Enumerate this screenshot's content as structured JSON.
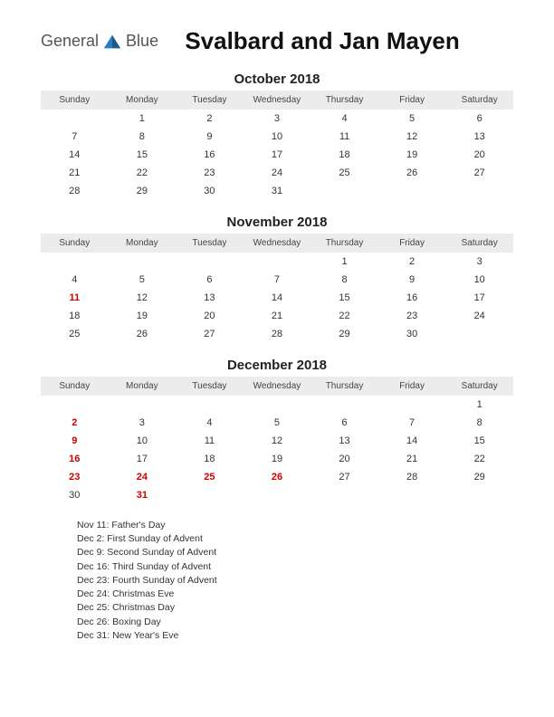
{
  "logo": {
    "first": "General",
    "second": "Blue"
  },
  "page_title": "Svalbard and Jan Mayen",
  "day_headers": [
    "Sunday",
    "Monday",
    "Tuesday",
    "Wednesday",
    "Thursday",
    "Friday",
    "Saturday"
  ],
  "colors": {
    "header_bg": "#ececec",
    "text": "#333333",
    "highlight": "#cc0000",
    "background": "#ffffff"
  },
  "months": [
    {
      "title": "October 2018",
      "weeks": [
        [
          {
            "d": ""
          },
          {
            "d": "1"
          },
          {
            "d": "2"
          },
          {
            "d": "3"
          },
          {
            "d": "4"
          },
          {
            "d": "5"
          },
          {
            "d": "6"
          }
        ],
        [
          {
            "d": "7"
          },
          {
            "d": "8"
          },
          {
            "d": "9"
          },
          {
            "d": "10"
          },
          {
            "d": "11"
          },
          {
            "d": "12"
          },
          {
            "d": "13"
          }
        ],
        [
          {
            "d": "14"
          },
          {
            "d": "15"
          },
          {
            "d": "16"
          },
          {
            "d": "17"
          },
          {
            "d": "18"
          },
          {
            "d": "19"
          },
          {
            "d": "20"
          }
        ],
        [
          {
            "d": "21"
          },
          {
            "d": "22"
          },
          {
            "d": "23"
          },
          {
            "d": "24"
          },
          {
            "d": "25"
          },
          {
            "d": "26"
          },
          {
            "d": "27"
          }
        ],
        [
          {
            "d": "28"
          },
          {
            "d": "29"
          },
          {
            "d": "30"
          },
          {
            "d": "31"
          },
          {
            "d": ""
          },
          {
            "d": ""
          },
          {
            "d": ""
          }
        ]
      ]
    },
    {
      "title": "November 2018",
      "weeks": [
        [
          {
            "d": ""
          },
          {
            "d": ""
          },
          {
            "d": ""
          },
          {
            "d": ""
          },
          {
            "d": "1"
          },
          {
            "d": "2"
          },
          {
            "d": "3"
          }
        ],
        [
          {
            "d": "4"
          },
          {
            "d": "5"
          },
          {
            "d": "6"
          },
          {
            "d": "7"
          },
          {
            "d": "8"
          },
          {
            "d": "9"
          },
          {
            "d": "10"
          }
        ],
        [
          {
            "d": "11",
            "hl": true
          },
          {
            "d": "12"
          },
          {
            "d": "13"
          },
          {
            "d": "14"
          },
          {
            "d": "15"
          },
          {
            "d": "16"
          },
          {
            "d": "17"
          }
        ],
        [
          {
            "d": "18"
          },
          {
            "d": "19"
          },
          {
            "d": "20"
          },
          {
            "d": "21"
          },
          {
            "d": "22"
          },
          {
            "d": "23"
          },
          {
            "d": "24"
          }
        ],
        [
          {
            "d": "25"
          },
          {
            "d": "26"
          },
          {
            "d": "27"
          },
          {
            "d": "28"
          },
          {
            "d": "29"
          },
          {
            "d": "30"
          },
          {
            "d": ""
          }
        ]
      ]
    },
    {
      "title": "December 2018",
      "weeks": [
        [
          {
            "d": ""
          },
          {
            "d": ""
          },
          {
            "d": ""
          },
          {
            "d": ""
          },
          {
            "d": ""
          },
          {
            "d": ""
          },
          {
            "d": "1"
          }
        ],
        [
          {
            "d": "2",
            "hl": true
          },
          {
            "d": "3"
          },
          {
            "d": "4"
          },
          {
            "d": "5"
          },
          {
            "d": "6"
          },
          {
            "d": "7"
          },
          {
            "d": "8"
          }
        ],
        [
          {
            "d": "9",
            "hl": true
          },
          {
            "d": "10"
          },
          {
            "d": "11"
          },
          {
            "d": "12"
          },
          {
            "d": "13"
          },
          {
            "d": "14"
          },
          {
            "d": "15"
          }
        ],
        [
          {
            "d": "16",
            "hl": true
          },
          {
            "d": "17"
          },
          {
            "d": "18"
          },
          {
            "d": "19"
          },
          {
            "d": "20"
          },
          {
            "d": "21"
          },
          {
            "d": "22"
          }
        ],
        [
          {
            "d": "23",
            "hl": true
          },
          {
            "d": "24",
            "hl": true
          },
          {
            "d": "25",
            "hl": true
          },
          {
            "d": "26",
            "hl": true
          },
          {
            "d": "27"
          },
          {
            "d": "28"
          },
          {
            "d": "29"
          }
        ],
        [
          {
            "d": "30"
          },
          {
            "d": "31",
            "hl": true
          },
          {
            "d": ""
          },
          {
            "d": ""
          },
          {
            "d": ""
          },
          {
            "d": ""
          },
          {
            "d": ""
          }
        ]
      ]
    }
  ],
  "holidays": [
    "Nov 11: Father's Day",
    "Dec 2: First Sunday of Advent",
    "Dec 9: Second Sunday of Advent",
    "Dec 16: Third Sunday of Advent",
    "Dec 23: Fourth Sunday of Advent",
    "Dec 24: Christmas Eve",
    "Dec 25: Christmas Day",
    "Dec 26: Boxing Day",
    "Dec 31: New Year's Eve"
  ]
}
